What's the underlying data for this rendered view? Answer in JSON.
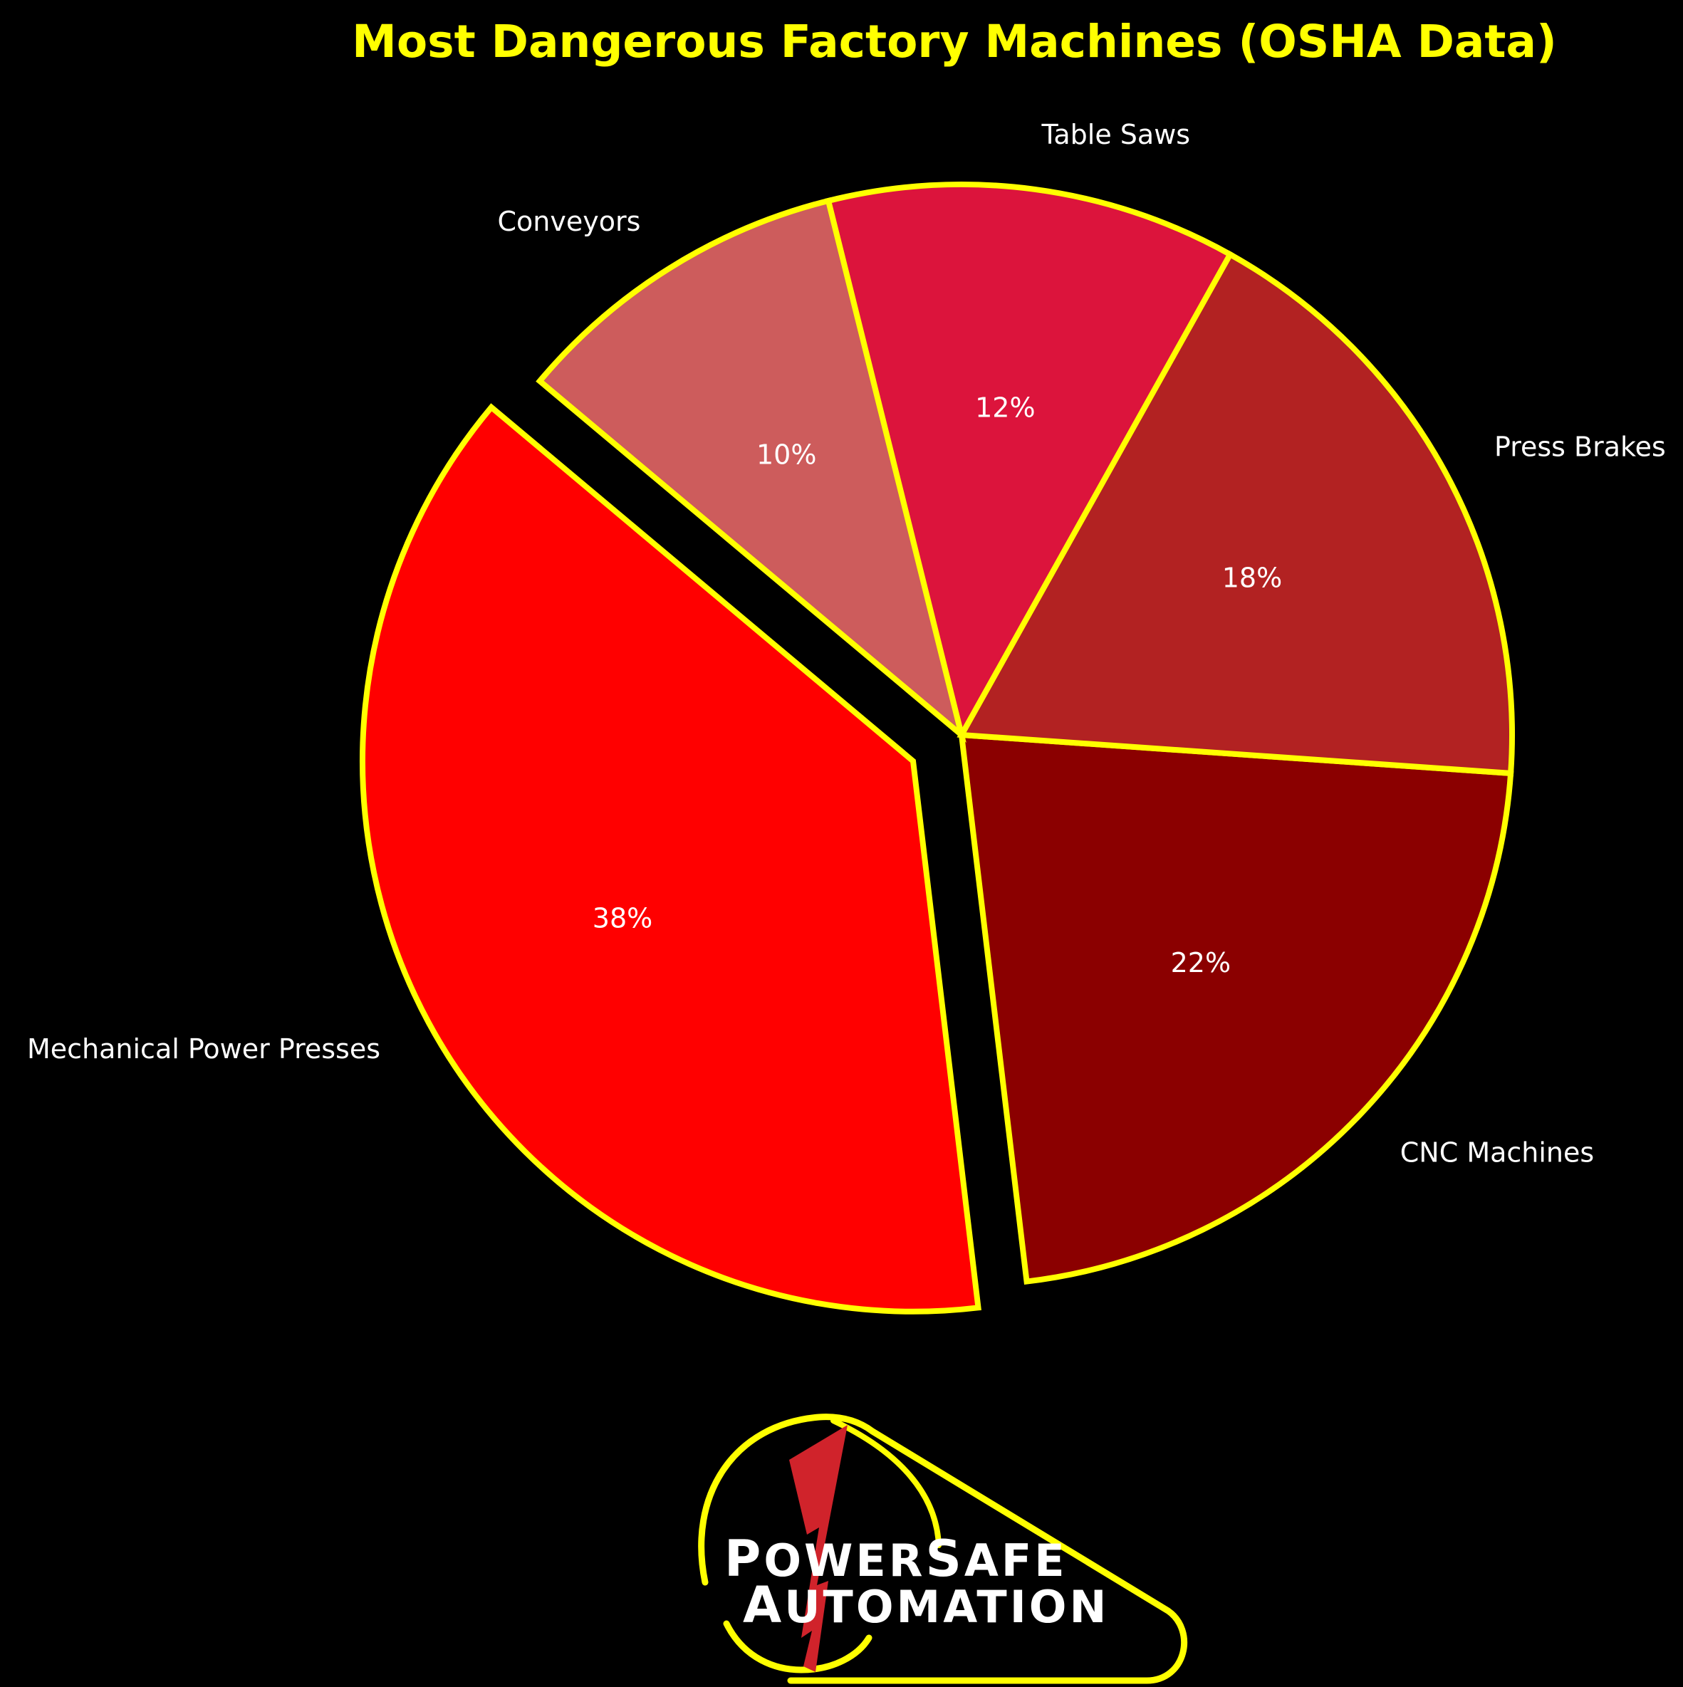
{
  "chart_data": {
    "type": "pie",
    "title": "Most Dangerous Factory Machines (OSHA Data)",
    "categories": [
      "Mechanical Power Presses",
      "CNC Machines",
      "Press Brakes",
      "Table Saws",
      "Conveyors"
    ],
    "values": [
      38,
      22,
      18,
      12,
      10
    ],
    "labels_pct": [
      "38%",
      "22%",
      "18%",
      "12%",
      "10%"
    ],
    "colors": [
      "#FF0000",
      "#8B0000",
      "#B22222",
      "#DC143C",
      "#CD5C5C"
    ],
    "edge_color": "#FFFF00",
    "explode": [
      0.1,
      0,
      0,
      0,
      0
    ],
    "start_angle": 140,
    "background": "#000000"
  },
  "logo": {
    "line1_initial": "P",
    "line1_rest": "OWER",
    "line1_initial2": "S",
    "line1_rest2": "AFE",
    "line2_initial": "A",
    "line2_rest": "UTOMATION",
    "brand": "PowerSafe Automation",
    "accent_color": "#FFFF00",
    "bolt_color": "#D0232B"
  }
}
